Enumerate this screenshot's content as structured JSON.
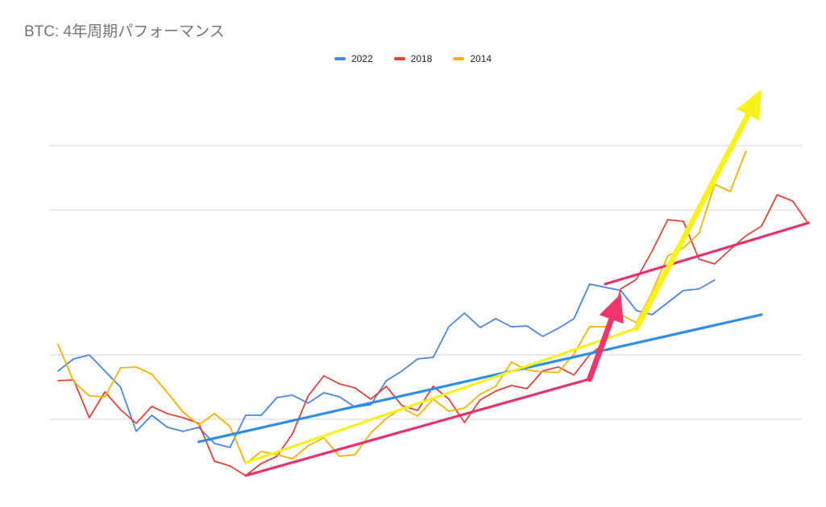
{
  "chart_data": {
    "type": "line",
    "title": "BTC: 4年周期パフォーマンス",
    "xlabel": "",
    "ylabel": "",
    "legend_position": "top",
    "grid": true,
    "ylim": [
      0,
      460
    ],
    "gridlines": [
      70,
      150,
      330,
      410
    ],
    "series": [
      {
        "name": "2022",
        "color": "#4a86e8",
        "values": [
          130,
          145,
          150,
          130,
          110,
          55,
          75,
          60,
          55,
          60,
          40,
          35,
          75,
          75,
          97,
          100,
          90,
          103,
          98,
          85,
          88,
          118,
          130,
          145,
          147,
          185,
          202,
          184,
          195,
          185,
          186,
          173,
          183,
          195,
          238,
          234,
          230,
          205,
          200,
          215,
          230,
          232,
          243
        ]
      },
      {
        "name": "2018",
        "color": "#e0453a",
        "values": [
          118,
          119,
          72,
          104,
          82,
          65,
          86,
          77,
          72,
          65,
          18,
          12,
          0,
          15,
          24,
          52,
          99,
          124,
          114,
          109,
          95,
          111,
          87,
          81,
          111,
          95,
          66,
          94,
          105,
          112,
          108,
          130,
          135,
          125,
          150,
          165,
          232,
          244,
          279,
          318,
          316,
          269,
          263,
          281,
          298,
          310,
          349,
          341,
          313
        ]
      },
      {
        "name": "2014",
        "color": "#f4b400",
        "values": [
          163,
          117,
          99,
          98,
          134,
          135,
          126,
          103,
          79,
          63,
          77,
          61,
          15,
          30,
          26,
          21,
          37,
          47,
          24,
          26,
          53,
          71,
          84,
          74,
          95,
          80,
          84,
          101,
          111,
          141,
          131,
          129,
          128,
          151,
          185,
          185,
          200,
          190,
          228,
          273,
          283,
          301,
          362,
          353,
          403
        ]
      }
    ],
    "annotations": [
      {
        "name": "trend-2022",
        "color": "#2f8fe8",
        "x": [
          9,
          45
        ],
        "y": [
          42,
          200
        ]
      },
      {
        "name": "trend-2018",
        "color": "#e8326e",
        "x": [
          12,
          34
        ],
        "y": [
          0,
          120
        ]
      },
      {
        "name": "trend-2014",
        "color": "#f7f21e",
        "x": [
          12,
          37
        ],
        "y": [
          16,
          183
        ]
      },
      {
        "name": "trend-2018-late",
        "color": "#e8326e",
        "x": [
          35,
          48
        ],
        "y": [
          238,
          314
        ]
      },
      {
        "name": "arrow-2018",
        "color": "#f2356c",
        "x": [
          34,
          36
        ],
        "y": [
          120,
          226
        ]
      },
      {
        "name": "arrow-2014",
        "color": "#f7f21e",
        "x": [
          37,
          45
        ],
        "y": [
          183,
          480
        ]
      }
    ]
  }
}
